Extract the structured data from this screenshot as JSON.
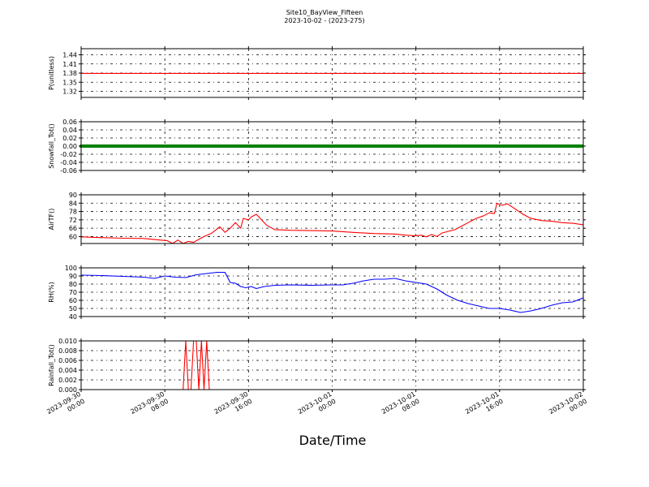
{
  "title": "Site10_BayView_Fifteen",
  "subtitle": "2023-10-02 - (2023-275)",
  "xlabel": "Date/Time",
  "x_ticks": [
    {
      "line1": "2023-09-30",
      "line2": "00:00"
    },
    {
      "line1": "2023-09-30",
      "line2": "08:00"
    },
    {
      "line1": "2023-09-30",
      "line2": "16:00"
    },
    {
      "line1": "2023-10-01",
      "line2": "00:00"
    },
    {
      "line1": "2023-10-01",
      "line2": "08:00"
    },
    {
      "line1": "2023-10-01",
      "line2": "16:00"
    },
    {
      "line1": "2023-10-02",
      "line2": "00:00"
    }
  ],
  "chart_data": [
    {
      "type": "line",
      "ylabel": "P(unitless)",
      "color": "#ff0000",
      "ylim": [
        1.3,
        1.46
      ],
      "yticks": [
        "1.44",
        "1.41",
        "1.38",
        "1.35",
        "1.32"
      ],
      "ytick_values": [
        1.44,
        1.41,
        1.38,
        1.35,
        1.32
      ],
      "grid": true,
      "x": [
        "2023-09-30 00:00",
        "2023-10-02 00:00"
      ],
      "values": [
        1.379,
        1.379
      ]
    },
    {
      "type": "line",
      "ylabel": "Snowfall_Tot()",
      "color": "#008000",
      "ylim": [
        -0.06,
        0.06
      ],
      "yticks": [
        "0.06",
        "0.04",
        "0.02",
        "0.00",
        "-0.02",
        "-0.04",
        "-0.06"
      ],
      "ytick_values": [
        0.06,
        0.04,
        0.02,
        0.0,
        -0.02,
        -0.04,
        -0.06
      ],
      "grid": true,
      "x": [
        "2023-09-30 00:00",
        "2023-10-02 00:00"
      ],
      "values": [
        0.0,
        0.0
      ]
    },
    {
      "type": "line",
      "ylabel": "AirTF()",
      "color": "#ff0000",
      "ylim": [
        55,
        90
      ],
      "yticks": [
        "90",
        "84",
        "78",
        "72",
        "66",
        "60"
      ],
      "ytick_values": [
        90,
        84,
        78,
        72,
        66,
        60
      ],
      "grid": true,
      "x": [
        "2023-09-30 00:00",
        "2023-09-30 02:00",
        "2023-09-30 04:00",
        "2023-09-30 06:00",
        "2023-09-30 07:30",
        "2023-09-30 08:15",
        "2023-09-30 08:45",
        "2023-09-30 09:15",
        "2023-09-30 09:45",
        "2023-09-30 10:15",
        "2023-09-30 10:45",
        "2023-09-30 11:15",
        "2023-09-30 11:45",
        "2023-09-30 12:30",
        "2023-09-30 13:15",
        "2023-09-30 13:45",
        "2023-09-30 14:15",
        "2023-09-30 14:45",
        "2023-09-30 15:15",
        "2023-09-30 15:30",
        "2023-09-30 16:00",
        "2023-09-30 16:15",
        "2023-09-30 16:45",
        "2023-09-30 17:15",
        "2023-09-30 17:45",
        "2023-09-30 18:30",
        "2023-09-30 20:00",
        "2023-09-30 22:00",
        "2023-10-01 00:00",
        "2023-10-01 01:00",
        "2023-10-01 02:00",
        "2023-10-01 04:00",
        "2023-10-01 06:00",
        "2023-10-01 07:00",
        "2023-10-01 08:00",
        "2023-10-01 08:30",
        "2023-10-01 09:00",
        "2023-10-01 09:30",
        "2023-10-01 10:00",
        "2023-10-01 10:30",
        "2023-10-01 11:00",
        "2023-10-01 11:45",
        "2023-10-01 12:15",
        "2023-10-01 13:00",
        "2023-10-01 13:45",
        "2023-10-01 14:30",
        "2023-10-01 15:00",
        "2023-10-01 15:30",
        "2023-10-01 15:45",
        "2023-10-01 16:00",
        "2023-10-01 16:15",
        "2023-10-01 16:45",
        "2023-10-01 17:15",
        "2023-10-01 17:45",
        "2023-10-01 18:15",
        "2023-10-01 19:00",
        "2023-10-01 20:00",
        "2023-10-01 21:00",
        "2023-10-01 22:00",
        "2023-10-01 23:00",
        "2023-10-02 00:00"
      ],
      "values": [
        59.8,
        59.2,
        58.8,
        58.6,
        57.5,
        57.0,
        55.0,
        57.5,
        55.0,
        56.5,
        55.8,
        58.0,
        60.0,
        62.5,
        67.0,
        63.0,
        66.0,
        70.0,
        66.0,
        73.0,
        72.0,
        74.0,
        76.0,
        72.0,
        68.0,
        65.0,
        64.5,
        64.3,
        64.0,
        63.5,
        63.0,
        62.2,
        61.8,
        61.0,
        60.5,
        61.0,
        59.8,
        61.5,
        60.0,
        62.5,
        63.5,
        65.0,
        67.0,
        70.0,
        73.0,
        75.0,
        77.0,
        76.5,
        84.0,
        83.0,
        82.5,
        83.5,
        81.0,
        78.5,
        76.0,
        73.0,
        71.5,
        71.0,
        70.0,
        69.5,
        68.5
      ]
    },
    {
      "type": "line",
      "ylabel": "RH(%)",
      "color": "#0000ff",
      "ylim": [
        40,
        100
      ],
      "yticks": [
        "100",
        "90",
        "80",
        "70",
        "60",
        "50",
        "40"
      ],
      "ytick_values": [
        100,
        90,
        80,
        70,
        60,
        50,
        40
      ],
      "grid": true,
      "x": [
        "2023-09-30 00:00",
        "2023-09-30 02:00",
        "2023-09-30 04:00",
        "2023-09-30 06:00",
        "2023-09-30 07:00",
        "2023-09-30 08:00",
        "2023-09-30 09:00",
        "2023-09-30 10:00",
        "2023-09-30 11:00",
        "2023-09-30 12:00",
        "2023-09-30 13:00",
        "2023-09-30 13:45",
        "2023-09-30 14:15",
        "2023-09-30 14:45",
        "2023-09-30 15:15",
        "2023-09-30 15:45",
        "2023-09-30 16:15",
        "2023-09-30 16:45",
        "2023-09-30 17:30",
        "2023-09-30 18:30",
        "2023-09-30 20:00",
        "2023-09-30 22:00",
        "2023-10-01 00:00",
        "2023-10-01 01:00",
        "2023-10-01 02:00",
        "2023-10-01 03:00",
        "2023-10-01 04:00",
        "2023-10-01 05:00",
        "2023-10-01 06:00",
        "2023-10-01 07:00",
        "2023-10-01 08:00",
        "2023-10-01 09:00",
        "2023-10-01 10:00",
        "2023-10-01 11:00",
        "2023-10-01 12:00",
        "2023-10-01 13:00",
        "2023-10-01 14:00",
        "2023-10-01 15:00",
        "2023-10-01 16:00",
        "2023-10-01 17:00",
        "2023-10-01 18:00",
        "2023-10-01 19:00",
        "2023-10-01 20:00",
        "2023-10-01 21:00",
        "2023-10-01 22:00",
        "2023-10-01 23:00",
        "2023-10-02 00:00"
      ],
      "values": [
        91,
        90.5,
        89.5,
        88.5,
        87,
        90,
        88.5,
        88,
        91.5,
        93,
        94.5,
        94.5,
        82,
        81,
        77,
        75.5,
        77,
        74.5,
        77,
        78.5,
        79,
        78.5,
        79,
        79,
        81,
        84,
        86,
        86,
        87,
        84,
        82,
        80,
        74,
        66,
        60,
        56,
        53,
        50,
        50,
        48,
        45,
        47,
        50,
        54,
        57,
        58,
        63
      ]
    },
    {
      "type": "line",
      "ylabel": "Rainfall_Tot()",
      "color": "#ff0000",
      "ylim": [
        0,
        0.01
      ],
      "yticks": [
        "0.010",
        "0.008",
        "0.006",
        "0.004",
        "0.002",
        "0.000"
      ],
      "ytick_values": [
        0.01,
        0.008,
        0.006,
        0.004,
        0.002,
        0.0
      ],
      "grid": true,
      "x": [
        "2023-09-30 00:00",
        "2023-09-30 09:45",
        "2023-09-30 10:00",
        "2023-09-30 10:15",
        "2023-09-30 10:30",
        "2023-09-30 10:45",
        "2023-09-30 11:00",
        "2023-09-30 11:15",
        "2023-09-30 11:30",
        "2023-09-30 11:45",
        "2023-09-30 12:00",
        "2023-09-30 12:15",
        "2023-10-02 00:00"
      ],
      "values": [
        0,
        0,
        0.01,
        0,
        0,
        0.01,
        0.01,
        0,
        0.01,
        0,
        0.01,
        0,
        0
      ]
    }
  ]
}
